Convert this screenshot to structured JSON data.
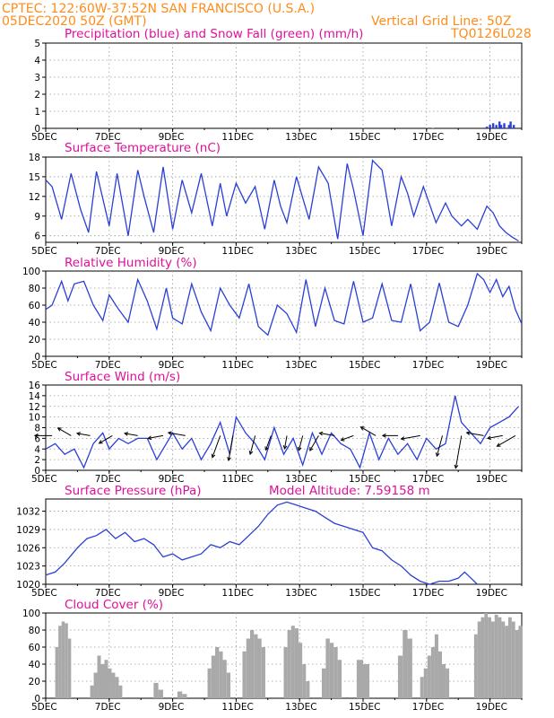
{
  "header": {
    "station": "CPTEC:   122:60W-37:52N  SAN FRANCISCO (U.S.A.)",
    "run": "05DEC2020 50Z (GMT)",
    "grid_note": "Vertical Grid Line: 50Z",
    "model_code": "TQ0126L028"
  },
  "x_axis": {
    "ticks": [
      "5DEC",
      "7DEC",
      "9DEC",
      "11DEC",
      "13DEC",
      "15DEC",
      "17DEC",
      "19DEC"
    ],
    "tick_days": [
      5,
      7,
      9,
      11,
      13,
      15,
      17,
      19
    ],
    "range_days": [
      5,
      20
    ]
  },
  "colors": {
    "line": "#2a3fd6",
    "snow": "#22aa22",
    "bar": "#a9a9a9",
    "arrow": "#000000",
    "title": "#e0109a",
    "header": "#ff8c1a"
  },
  "chart_data": [
    {
      "id": "precip",
      "type": "bar",
      "title": "Precipitation (blue) and Snow Fall (green) (mm/h)",
      "ylim": [
        0,
        5
      ],
      "yticks": [
        0,
        1,
        2,
        3,
        4,
        5
      ],
      "grid": true,
      "series": [
        {
          "name": "Precipitation",
          "x": [
            18.9,
            19.0,
            19.1,
            19.2,
            19.3,
            19.35,
            19.45,
            19.6,
            19.65,
            19.75
          ],
          "values": [
            0.1,
            0.2,
            0.3,
            0.2,
            0.4,
            0.2,
            0.3,
            0.2,
            0.4,
            0.2
          ]
        },
        {
          "name": "Snow Fall",
          "x": [
            17.2
          ],
          "values": [
            0.03
          ]
        }
      ]
    },
    {
      "id": "temp",
      "type": "line",
      "title": "Surface Temperature (nC)",
      "ylim": [
        5,
        18
      ],
      "yticks": [
        6,
        9,
        12,
        15,
        18
      ],
      "grid": true,
      "x": [
        5.0,
        5.2,
        5.5,
        5.8,
        6.1,
        6.35,
        6.6,
        7.0,
        7.25,
        7.6,
        7.9,
        8.1,
        8.4,
        8.7,
        9.0,
        9.3,
        9.6,
        9.9,
        10.25,
        10.5,
        10.7,
        11.0,
        11.3,
        11.6,
        11.9,
        12.2,
        12.4,
        12.6,
        12.9,
        13.3,
        13.6,
        13.9,
        14.2,
        14.5,
        14.7,
        15.0,
        15.3,
        15.6,
        15.9,
        16.2,
        16.4,
        16.6,
        16.9,
        17.3,
        17.6,
        17.8,
        18.1,
        18.3,
        18.6,
        18.9,
        19.1,
        19.3,
        19.5,
        19.7,
        19.9
      ],
      "values": [
        14.5,
        13.5,
        8.5,
        15.5,
        10.0,
        6.5,
        15.8,
        7.5,
        15.5,
        6.0,
        16.0,
        12.0,
        6.5,
        16.5,
        7.0,
        14.5,
        9.5,
        15.5,
        7.5,
        14.0,
        9.0,
        14.0,
        11.0,
        13.5,
        7.0,
        14.5,
        10.5,
        8.0,
        15.0,
        8.5,
        16.5,
        14.0,
        5.5,
        17.0,
        13.0,
        6.0,
        17.5,
        16.0,
        7.5,
        15.0,
        12.5,
        9.0,
        13.5,
        8.0,
        11.0,
        9.0,
        7.5,
        8.5,
        7.0,
        10.5,
        9.5,
        7.5,
        6.5,
        5.8,
        5.2
      ]
    },
    {
      "id": "rh",
      "type": "line",
      "title": "Relative Humidity (%)",
      "ylim": [
        0,
        100
      ],
      "yticks": [
        0,
        20,
        40,
        60,
        80,
        100
      ],
      "grid": true,
      "x": [
        5.0,
        5.2,
        5.5,
        5.7,
        5.9,
        6.2,
        6.5,
        6.8,
        7.0,
        7.3,
        7.6,
        7.9,
        8.2,
        8.5,
        8.8,
        9.0,
        9.3,
        9.6,
        9.9,
        10.2,
        10.5,
        10.8,
        11.1,
        11.4,
        11.7,
        12.0,
        12.3,
        12.6,
        12.9,
        13.2,
        13.5,
        13.8,
        14.1,
        14.4,
        14.7,
        15.0,
        15.3,
        15.6,
        15.9,
        16.2,
        16.5,
        16.8,
        17.1,
        17.4,
        17.7,
        18.0,
        18.3,
        18.6,
        18.8,
        19.0,
        19.2,
        19.4,
        19.6,
        19.8,
        20.0
      ],
      "values": [
        55,
        60,
        88,
        65,
        85,
        88,
        60,
        42,
        72,
        55,
        40,
        90,
        65,
        32,
        80,
        45,
        38,
        85,
        52,
        30,
        80,
        60,
        45,
        85,
        35,
        25,
        60,
        50,
        28,
        90,
        35,
        80,
        42,
        38,
        88,
        40,
        45,
        85,
        42,
        40,
        85,
        30,
        40,
        86,
        40,
        35,
        60,
        97,
        90,
        75,
        90,
        70,
        82,
        55,
        38
      ]
    },
    {
      "id": "wind",
      "type": "line",
      "title": "Surface Wind (m/s)",
      "ylim": [
        0,
        16
      ],
      "yticks": [
        0,
        2,
        4,
        6,
        8,
        10,
        12,
        14,
        16
      ],
      "grid": true,
      "x": [
        5.0,
        5.3,
        5.6,
        5.9,
        6.2,
        6.5,
        6.8,
        7.0,
        7.3,
        7.6,
        7.9,
        8.2,
        8.5,
        8.8,
        9.0,
        9.3,
        9.6,
        9.9,
        10.2,
        10.5,
        10.8,
        11.0,
        11.3,
        11.6,
        11.9,
        12.2,
        12.5,
        12.8,
        13.1,
        13.4,
        13.7,
        14.0,
        14.3,
        14.6,
        14.9,
        15.2,
        15.5,
        15.8,
        16.1,
        16.4,
        16.7,
        17.0,
        17.3,
        17.6,
        17.9,
        18.1,
        18.4,
        18.7,
        19.0,
        19.3,
        19.6,
        19.9
      ],
      "values": [
        4,
        5,
        3,
        4,
        0.5,
        5,
        7,
        4,
        6,
        5,
        6,
        6,
        2,
        5,
        7,
        4,
        6,
        2,
        5,
        9,
        3,
        10,
        7,
        5,
        2,
        8,
        3,
        6,
        1,
        7,
        3,
        7,
        5,
        4,
        0.5,
        7,
        2,
        6,
        3,
        5,
        2,
        6,
        4,
        5,
        14,
        9,
        7,
        5,
        8,
        9,
        10,
        12
      ],
      "barbs": {
        "x": [
          5.2,
          5.8,
          6.4,
          7.1,
          7.9,
          8.7,
          9.4,
          10.5,
          10.9,
          11.6,
          12.1,
          12.6,
          13.1,
          13.6,
          14.1,
          14.7,
          15.4,
          16.1,
          16.8,
          17.5,
          18.1,
          18.8,
          19.4,
          19.8
        ],
        "speed": [
          6,
          5,
          4,
          5,
          4,
          5,
          6,
          9,
          10,
          7,
          5,
          4,
          5,
          6,
          5,
          4,
          6,
          5,
          7,
          8,
          14,
          6,
          5,
          8
        ],
        "dir_deg": [
          90,
          120,
          100,
          60,
          100,
          80,
          100,
          20,
          10,
          15,
          20,
          10,
          15,
          30,
          100,
          70,
          120,
          90,
          80,
          15,
          10,
          100,
          80,
          60
        ]
      }
    },
    {
      "id": "pressure",
      "type": "line",
      "title": "Surface Pressure (hPa)",
      "annotation": "Model Altitude: 7.59158 m",
      "ylim": [
        1020,
        1034
      ],
      "yticks": [
        1020,
        1023,
        1026,
        1029,
        1032
      ],
      "grid": true,
      "x": [
        5.0,
        5.3,
        5.6,
        6.0,
        6.3,
        6.6,
        6.9,
        7.2,
        7.5,
        7.8,
        8.1,
        8.4,
        8.7,
        9.0,
        9.3,
        9.6,
        9.9,
        10.2,
        10.5,
        10.8,
        11.1,
        11.4,
        11.7,
        12.0,
        12.3,
        12.6,
        12.9,
        13.2,
        13.5,
        13.8,
        14.1,
        14.4,
        14.7,
        15.0,
        15.3,
        15.6,
        15.9,
        16.2,
        16.5,
        16.8,
        17.1,
        17.4,
        17.7,
        18.0,
        18.2,
        18.4,
        18.6
      ],
      "values": [
        1021.5,
        1022.0,
        1023.5,
        1026.0,
        1027.5,
        1028.0,
        1029.0,
        1027.5,
        1028.5,
        1027.0,
        1027.5,
        1026.5,
        1024.5,
        1025.0,
        1024.0,
        1024.5,
        1025.0,
        1026.5,
        1026.0,
        1027.0,
        1026.5,
        1028.0,
        1029.5,
        1031.5,
        1033.0,
        1033.5,
        1033.0,
        1032.5,
        1032.0,
        1031.0,
        1030.0,
        1029.5,
        1029.0,
        1028.5,
        1026.0,
        1025.5,
        1024.0,
        1023.0,
        1021.5,
        1020.5,
        1020.0,
        1020.5,
        1020.5,
        1021.0,
        1022.0,
        1021.0,
        1020.0
      ]
    },
    {
      "id": "cloud",
      "type": "bar",
      "title": "Cloud Cover (%)",
      "ylim": [
        0,
        100
      ],
      "yticks": [
        0,
        20,
        40,
        60,
        80,
        100
      ],
      "grid": true,
      "segments": [
        {
          "start": 5.3,
          "end": 5.7,
          "values": [
            60,
            85,
            90,
            88,
            70
          ]
        },
        {
          "start": 6.4,
          "end": 7.3,
          "values": [
            15,
            30,
            50,
            40,
            45,
            35,
            30,
            25,
            15
          ]
        },
        {
          "start": 8.4,
          "end": 8.55,
          "values": [
            18,
            10
          ]
        },
        {
          "start": 9.15,
          "end": 9.3,
          "values": [
            8,
            5
          ]
        },
        {
          "start": 10.1,
          "end": 10.7,
          "values": [
            35,
            50,
            60,
            55,
            45,
            30
          ]
        },
        {
          "start": 11.2,
          "end": 11.8,
          "values": [
            55,
            70,
            80,
            75,
            70,
            60
          ]
        },
        {
          "start": 12.5,
          "end": 13.2,
          "values": [
            60,
            80,
            85,
            82,
            65,
            40,
            20
          ]
        },
        {
          "start": 13.7,
          "end": 14.2,
          "values": [
            35,
            70,
            65,
            60,
            45
          ]
        },
        {
          "start": 14.8,
          "end": 15.0,
          "values": [
            45,
            40
          ]
        },
        {
          "start": 16.1,
          "end": 16.4,
          "values": [
            50,
            80,
            70
          ]
        },
        {
          "start": 16.8,
          "end": 17.6,
          "values": [
            25,
            35,
            50,
            60,
            75,
            55,
            40,
            35
          ]
        },
        {
          "start": 18.5,
          "end": 19.9,
          "values": [
            75,
            90,
            95,
            100,
            95,
            90,
            98,
            95,
            90,
            85,
            95,
            90,
            80,
            85
          ]
        }
      ]
    }
  ]
}
